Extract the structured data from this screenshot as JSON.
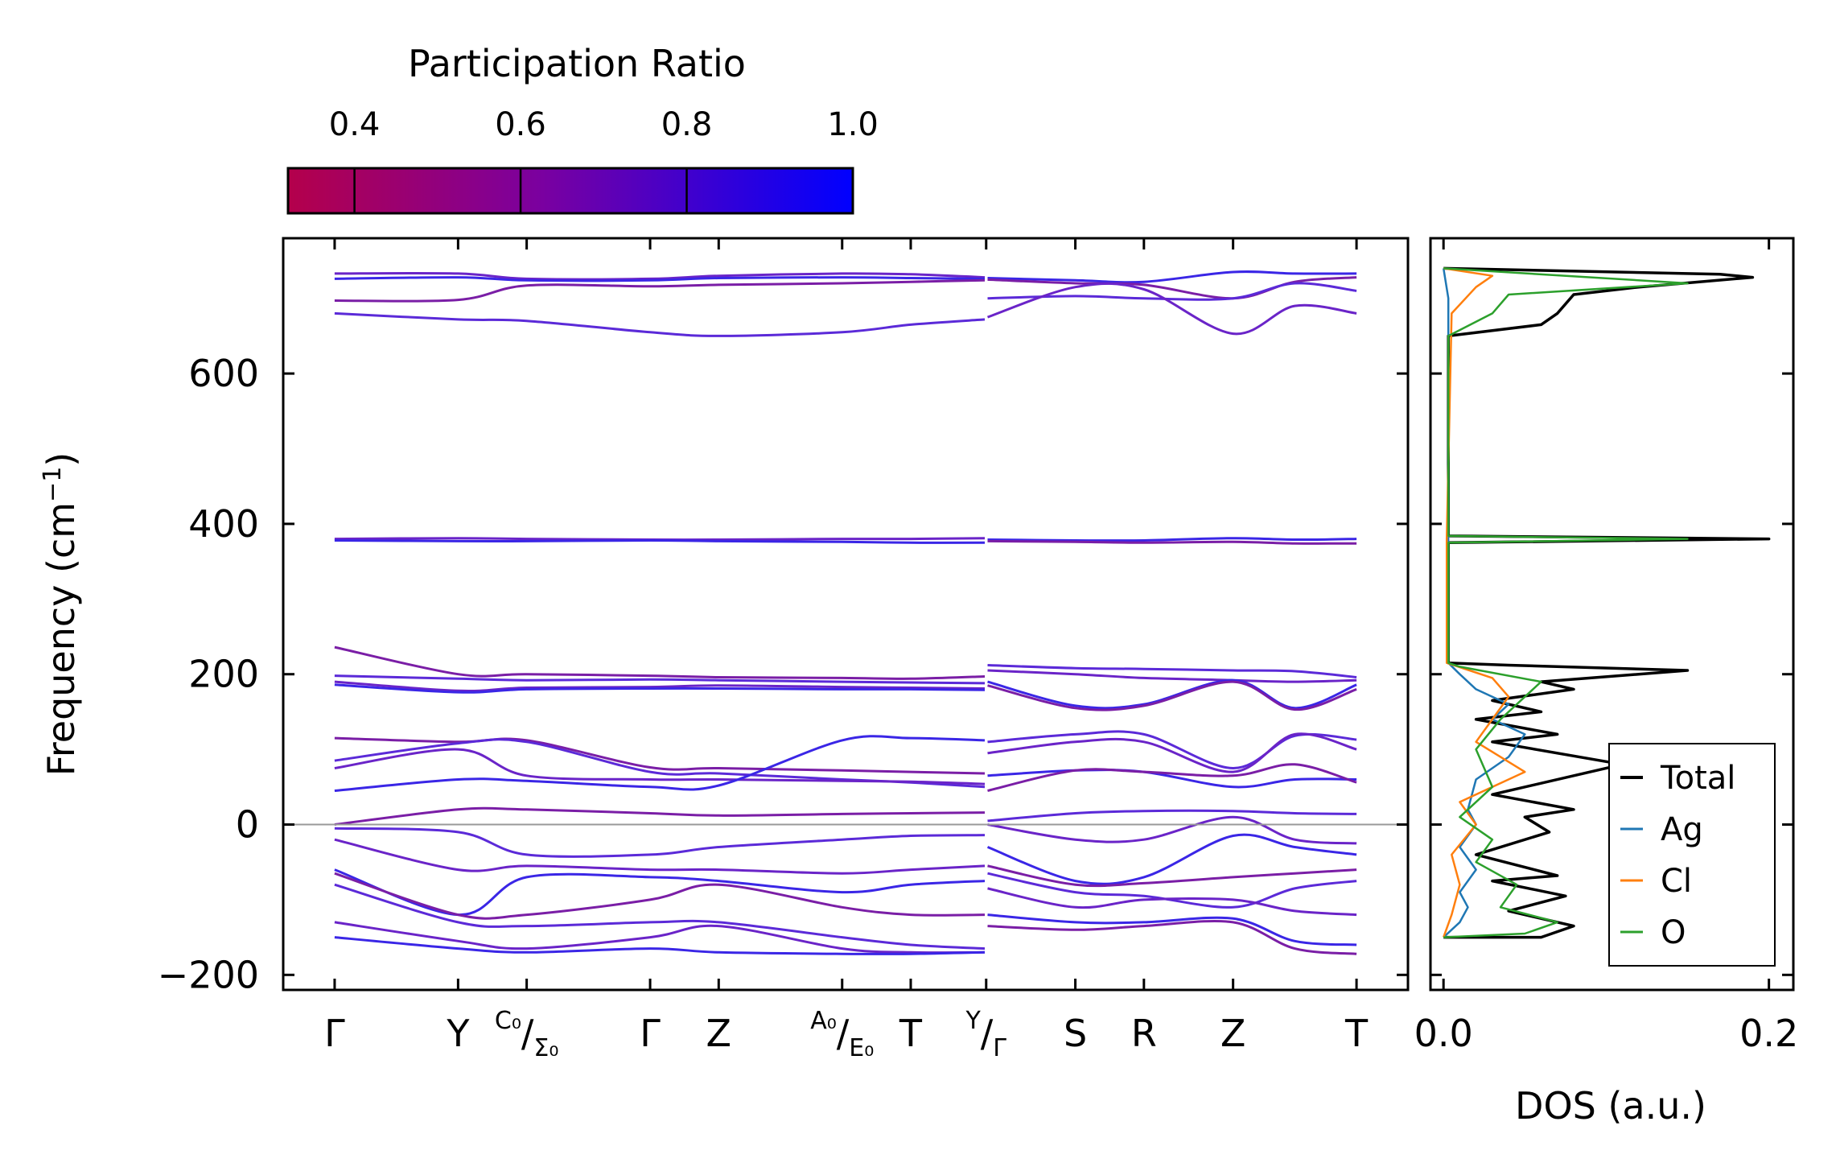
{
  "chart_data": [
    {
      "type": "line",
      "name": "phonon-band-structure",
      "ylabel_main": "Frequency (cm",
      "ylabel_sup": "−1",
      "ylabel_end": ")",
      "ylim": [
        -220,
        780
      ],
      "yticks": [
        -200,
        0,
        200,
        400,
        600
      ],
      "ytick_labels": [
        "−200",
        "0",
        "200",
        "400",
        "600"
      ],
      "kpoint_ticks": [
        {
          "pos": 0.0,
          "label": "Γ"
        },
        {
          "pos": 0.18,
          "label": "Y"
        },
        {
          "pos": 0.28,
          "label": "C₀/Σ₀"
        },
        {
          "pos": 0.46,
          "label": "Γ"
        },
        {
          "pos": 0.56,
          "label": "Z"
        },
        {
          "pos": 0.74,
          "label": "A₀/E₀"
        },
        {
          "pos": 0.84,
          "label": "T"
        },
        {
          "pos": 0.95,
          "label": "Y/Γ"
        },
        {
          "pos": 1.08,
          "label": "S"
        },
        {
          "pos": 1.18,
          "label": "R"
        },
        {
          "pos": 1.31,
          "label": "Z"
        },
        {
          "pos": 1.49,
          "label": "T"
        }
      ],
      "xlim": [
        -0.075,
        1.565
      ],
      "segment_breaks": [
        0.95
      ],
      "reference_line": 0,
      "bands_segment1": [
        [
          733,
          733,
          726,
          726,
          730,
          733,
          732,
          728
        ],
        [
          726,
          728,
          724,
          724,
          727,
          728,
          727,
          726
        ],
        [
          697,
          698,
          717,
          716,
          718,
          720,
          722,
          724
        ],
        [
          680,
          672,
          670,
          655,
          650,
          655,
          665,
          672
        ],
        [
          380,
          381,
          380,
          379,
          379,
          380,
          380,
          381
        ],
        [
          378,
          377,
          377,
          378,
          377,
          376,
          375,
          375
        ],
        [
          236,
          200,
          200,
          198,
          196,
          195,
          194,
          197
        ],
        [
          198,
          194,
          192,
          193,
          192,
          190,
          189,
          188
        ],
        [
          190,
          178,
          182,
          183,
          185,
          183,
          182,
          181
        ],
        [
          186,
          176,
          180,
          181,
          181,
          180,
          180,
          179
        ],
        [
          115,
          110,
          112,
          76,
          75,
          72,
          70,
          68
        ],
        [
          85,
          108,
          110,
          70,
          68,
          60,
          56,
          50
        ],
        [
          75,
          100,
          65,
          60,
          60,
          58,
          57,
          54
        ],
        [
          45,
          60,
          58,
          50,
          52,
          112,
          115,
          112
        ],
        [
          0,
          20,
          20,
          15,
          12,
          14,
          15,
          16
        ],
        [
          -5,
          -10,
          -40,
          -40,
          -30,
          -20,
          -15,
          -14
        ],
        [
          -20,
          -60,
          -55,
          -60,
          -60,
          -65,
          -60,
          -55
        ],
        [
          -60,
          -120,
          -70,
          -70,
          -75,
          -90,
          -80,
          -75
        ],
        [
          -65,
          -120,
          -120,
          -100,
          -80,
          -110,
          -120,
          -120
        ],
        [
          -80,
          -130,
          -135,
          -130,
          -130,
          -150,
          -160,
          -165
        ],
        [
          -130,
          -155,
          -165,
          -150,
          -135,
          -165,
          -170,
          -170
        ],
        [
          -150,
          -165,
          -170,
          -165,
          -170,
          -172,
          -172,
          -170
        ]
      ],
      "bands_segment2": [
        [
          727,
          724,
          722,
          735,
          733,
          733
        ],
        [
          725,
          720,
          718,
          700,
          722,
          728
        ],
        [
          700,
          703,
          700,
          700,
          720,
          710
        ],
        [
          675,
          715,
          712,
          653,
          690,
          680
        ],
        [
          379,
          378,
          378,
          381,
          379,
          380
        ],
        [
          377,
          376,
          375,
          376,
          374,
          374
        ],
        [
          212,
          208,
          207,
          205,
          204,
          196
        ],
        [
          205,
          200,
          195,
          192,
          190,
          192
        ],
        [
          190,
          158,
          160,
          192,
          155,
          186
        ],
        [
          185,
          155,
          158,
          190,
          153,
          180
        ],
        [
          110,
          120,
          120,
          75,
          118,
          113
        ],
        [
          95,
          110,
          110,
          70,
          120,
          100
        ],
        [
          65,
          72,
          70,
          50,
          60,
          60
        ],
        [
          45,
          72,
          70,
          65,
          80,
          56
        ],
        [
          5,
          15,
          18,
          18,
          15,
          14
        ],
        [
          0,
          -20,
          -20,
          10,
          -20,
          -25
        ],
        [
          -30,
          -75,
          -70,
          -15,
          -30,
          -40
        ],
        [
          -55,
          -80,
          -78,
          -70,
          -65,
          -60
        ],
        [
          -65,
          -90,
          -95,
          -110,
          -85,
          -75
        ],
        [
          -85,
          -110,
          -100,
          -100,
          -115,
          -120
        ],
        [
          -120,
          -130,
          -130,
          -125,
          -155,
          -160
        ],
        [
          -135,
          -140,
          -135,
          -130,
          -165,
          -172
        ]
      ]
    },
    {
      "type": "line",
      "name": "density-of-states",
      "xlabel": "DOS (a.u.)",
      "xlim": [
        -0.008,
        0.215
      ],
      "xticks": [
        0.0,
        0.2
      ],
      "xtick_labels": [
        "0.0",
        "0.2"
      ],
      "ylim": [
        -220,
        780
      ],
      "legend_position": "lower-right",
      "series": [
        {
          "name": "Total",
          "color": "#000000",
          "x": [
            0,
            0.06,
            0.08,
            0.04,
            0.075,
            0.03,
            0.07,
            0.02,
            0.065,
            0.05,
            0.08,
            0.03,
            0.11,
            0.03,
            0.07,
            0.02,
            0.06,
            0.03,
            0.08,
            0.06,
            0.15,
            0.04,
            0.003,
            0.003,
            0.2,
            0.003,
            0.003,
            0.003,
            0.06,
            0.07,
            0.08,
            0.12,
            0.19,
            0.17,
            0.0
          ],
          "y": [
            -150,
            -150,
            -135,
            -115,
            -95,
            -75,
            -68,
            -40,
            -10,
            10,
            20,
            40,
            80,
            110,
            120,
            140,
            150,
            165,
            180,
            190,
            205,
            212,
            215,
            375,
            380,
            384,
            600,
            650,
            665,
            680,
            705,
            715,
            728,
            732,
            740
          ]
        },
        {
          "name": "Ag",
          "color": "#1f77b4",
          "x": [
            0,
            0.01,
            0.015,
            0.01,
            0.02,
            0.01,
            0.02,
            0.015,
            0.02,
            0.04,
            0.05,
            0.03,
            0.04,
            0.02,
            0.01,
            0.003,
            0.003,
            0.003,
            0.003,
            0.0
          ],
          "y": [
            -150,
            -130,
            -110,
            -90,
            -60,
            -30,
            0,
            20,
            60,
            90,
            120,
            140,
            160,
            180,
            200,
            215,
            375,
            380,
            700,
            740
          ]
        },
        {
          "name": "Cl",
          "color": "#ff7f0e",
          "x": [
            0,
            0.005,
            0.01,
            0.005,
            0.02,
            0.01,
            0.05,
            0.02,
            0.04,
            0.03,
            0.002,
            0.002,
            0.002,
            0.005,
            0.02,
            0.03,
            0.0
          ],
          "y": [
            -150,
            -120,
            -80,
            -40,
            0,
            30,
            70,
            110,
            170,
            195,
            215,
            375,
            380,
            680,
            715,
            730,
            740
          ]
        },
        {
          "name": "O",
          "color": "#2ca02c",
          "x": [
            0,
            0.05,
            0.07,
            0.035,
            0.045,
            0.02,
            0.03,
            0.01,
            0.03,
            0.02,
            0.035,
            0.06,
            0.01,
            0.003,
            0.003,
            0.15,
            0.003,
            0.003,
            0.003,
            0.03,
            0.04,
            0.15,
            0.0
          ],
          "y": [
            -150,
            -145,
            -130,
            -110,
            -80,
            -50,
            -20,
            10,
            50,
            100,
            140,
            190,
            210,
            215,
            375,
            380,
            384,
            600,
            650,
            680,
            705,
            720,
            740
          ]
        }
      ]
    },
    {
      "type": "heatmap",
      "name": "participation-ratio-colorbar",
      "title": "Participation Ratio",
      "vmin": 0.32,
      "vmax": 1.0,
      "ticks": [
        0.4,
        0.6,
        0.8,
        1.0
      ],
      "tick_labels": [
        "0.4",
        "0.6",
        "0.8",
        "1.0"
      ],
      "color_low": "#b4004b",
      "color_mid": "#7a00a0",
      "color_high": "#0000ff",
      "band_color_mix": [
        "#6a24c8",
        "#3a26e6",
        "#7a1ea6",
        "#5b2ad8"
      ]
    }
  ]
}
